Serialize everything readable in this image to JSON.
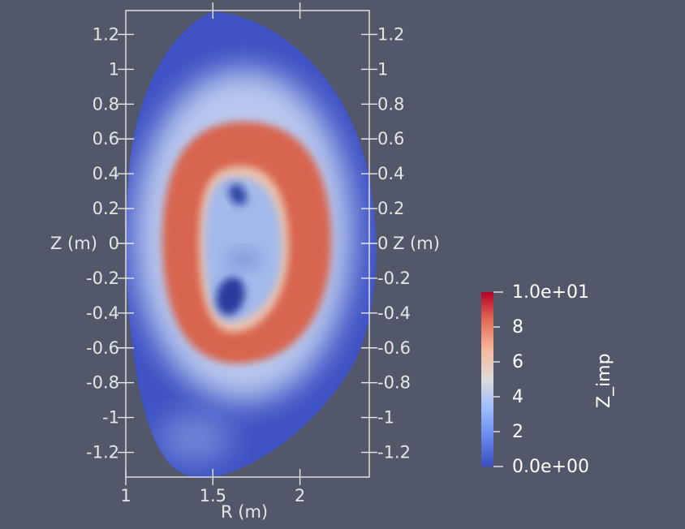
{
  "colors": {
    "background": "#525769",
    "axis": "#e8e8e8",
    "plasma_edge": "#3b4cc0",
    "plasma_ring": "#d6604d",
    "plasma_core": "#9cb3e8",
    "colormap": [
      "#3b4cc0",
      "#7396f5",
      "#b0cbfc",
      "#dddcdc",
      "#f6b69a",
      "#e6745b",
      "#b40426"
    ]
  },
  "axes": {
    "x_title": "R (m)",
    "x_ticks": [
      "1",
      "1.5",
      "2"
    ],
    "left_title": "Z (m)",
    "right_title": "Z (m)",
    "z_ticks": [
      "1.2",
      "1",
      "0.8",
      "0.6",
      "0.4",
      "0.2",
      "0",
      "-0.2",
      "-0.4",
      "-0.6",
      "-0.8",
      "-1",
      "-1.2"
    ]
  },
  "colorbar": {
    "title": "Z_imp",
    "max_label": "1.0e+01",
    "min_label": "0.0e+00",
    "mid_labels": [
      "8",
      "6",
      "4",
      "2"
    ]
  }
}
